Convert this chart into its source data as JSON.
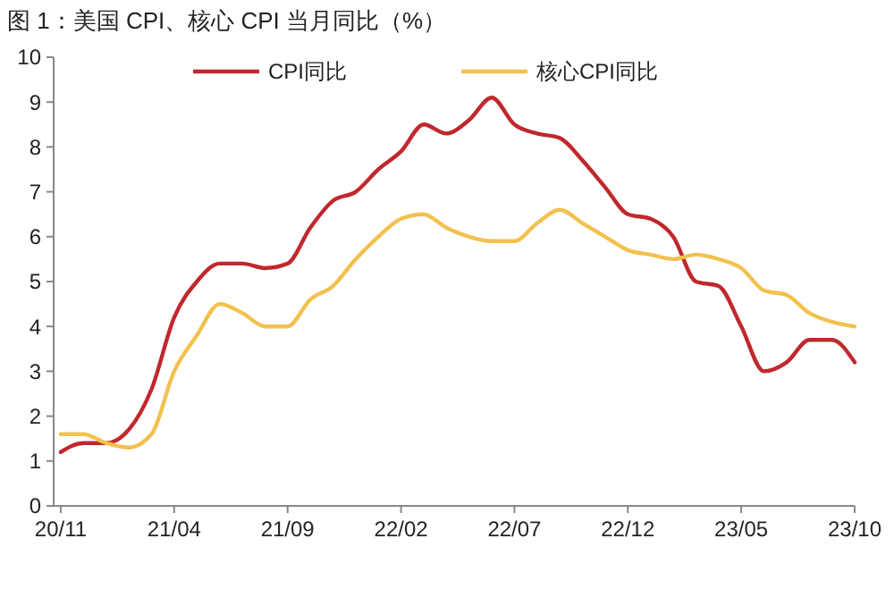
{
  "chart_data": {
    "type": "line",
    "title": "图 1：美国 CPI、核心 CPI 当月同比（%）",
    "categories": [
      "20/11",
      null,
      null,
      null,
      null,
      "21/04",
      null,
      null,
      null,
      null,
      "21/09",
      null,
      null,
      null,
      null,
      "22/02",
      null,
      null,
      null,
      null,
      "22/07",
      null,
      null,
      null,
      null,
      "22/12",
      null,
      null,
      null,
      null,
      "23/05",
      null,
      null,
      null,
      null,
      "23/10"
    ],
    "series": [
      {
        "name": "CPI同比",
        "color": "#c0282d",
        "values": [
          1.2,
          1.4,
          1.4,
          1.7,
          2.6,
          4.2,
          5.0,
          5.4,
          5.4,
          5.3,
          5.4,
          6.2,
          6.8,
          7.0,
          7.5,
          7.9,
          8.5,
          8.3,
          8.6,
          9.1,
          8.5,
          8.3,
          8.2,
          7.7,
          7.1,
          6.5,
          6.4,
          6.0,
          5.0,
          4.9,
          4.0,
          3.0,
          3.2,
          3.7,
          3.7,
          3.2
        ]
      },
      {
        "name": "核心CPI同比",
        "color": "#f2c14e",
        "values": [
          1.6,
          1.6,
          1.4,
          1.3,
          1.6,
          3.0,
          3.8,
          4.5,
          4.3,
          4.0,
          4.0,
          4.6,
          4.9,
          5.5,
          6.0,
          6.4,
          6.5,
          6.2,
          6.0,
          5.9,
          5.9,
          6.3,
          6.6,
          6.3,
          6.0,
          5.7,
          5.6,
          5.5,
          5.6,
          5.5,
          5.3,
          4.8,
          4.7,
          4.3,
          4.1,
          4.0
        ]
      }
    ],
    "ylim": [
      0,
      10
    ],
    "yticks": [
      0,
      1,
      2,
      3,
      4,
      5,
      6,
      7,
      8,
      9,
      10
    ],
    "grid": false,
    "legend": "top",
    "line_style": "solid",
    "marker": "none"
  }
}
